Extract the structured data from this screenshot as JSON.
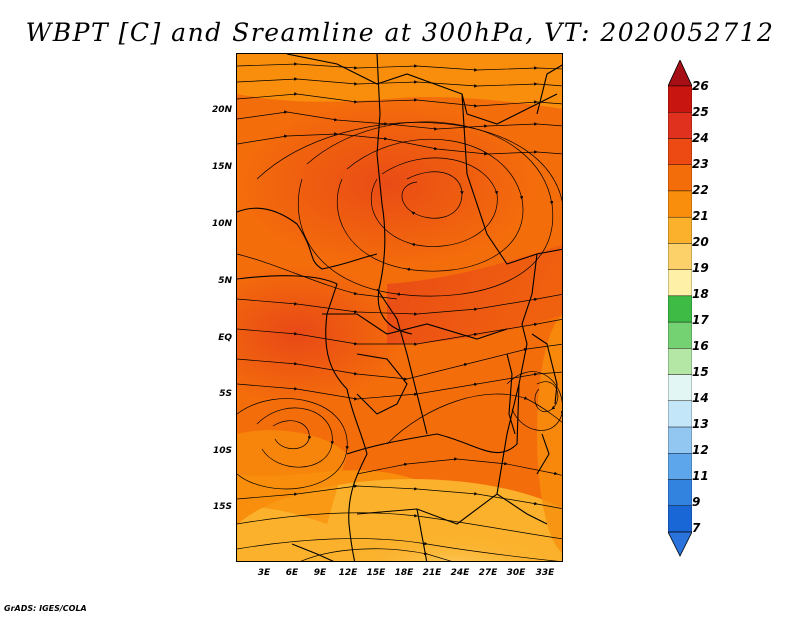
{
  "title": "WBPT [C] and Sreamline at 300hPa, VT: 2020052712",
  "credit": "GrADS: IGES/COLA",
  "map": {
    "variable": "Wet-bulb potential temperature",
    "unit": "C",
    "level": "300hPa",
    "lat_range": [
      -20,
      24
    ],
    "lon_range": [
      0,
      35
    ],
    "lat_ticks": [
      {
        "label": "20N",
        "value": 20
      },
      {
        "label": "15N",
        "value": 15
      },
      {
        "label": "10N",
        "value": 10
      },
      {
        "label": "5N",
        "value": 5
      },
      {
        "label": "EQ",
        "value": 0
      },
      {
        "label": "5S",
        "value": -5
      },
      {
        "label": "10S",
        "value": -10
      },
      {
        "label": "15S",
        "value": -15
      }
    ],
    "lon_ticks": [
      {
        "label": "3E",
        "value": 3
      },
      {
        "label": "6E",
        "value": 6
      },
      {
        "label": "9E",
        "value": 9
      },
      {
        "label": "12E",
        "value": 12
      },
      {
        "label": "15E",
        "value": 15
      },
      {
        "label": "18E",
        "value": 18
      },
      {
        "label": "21E",
        "value": 21
      },
      {
        "label": "24E",
        "value": 24
      },
      {
        "label": "27E",
        "value": 27
      },
      {
        "label": "30E",
        "value": 30
      },
      {
        "label": "33E",
        "value": 33
      }
    ]
  },
  "colorbar": {
    "labels": [
      "26",
      "25",
      "24",
      "23",
      "22",
      "21",
      "20",
      "19",
      "18",
      "17",
      "16",
      "15",
      "14",
      "13",
      "12",
      "11",
      "9",
      "7"
    ],
    "colors": [
      "#a50f15",
      "#c8150f",
      "#e0301e",
      "#ec4a12",
      "#f46d0b",
      "#f88e0c",
      "#fbb12b",
      "#fdd16a",
      "#fef0a6",
      "#3dbb45",
      "#74d273",
      "#b4e7a6",
      "#e2f6f4",
      "#c3e6f8",
      "#92c7f2",
      "#5ea6ec",
      "#3283e0",
      "#1966d6",
      "#2a72dc"
    ]
  }
}
